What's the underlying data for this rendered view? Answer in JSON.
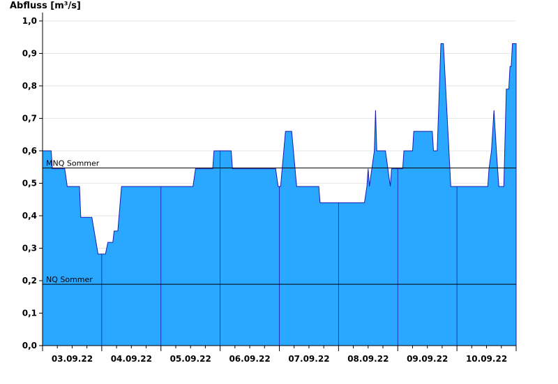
{
  "chart_data": {
    "type": "area",
    "ylabel": "Abfluss [m³/s]",
    "ylim": [
      0,
      1.0
    ],
    "yticks": [
      0.0,
      0.1,
      0.2,
      0.3,
      0.4,
      0.5,
      0.6,
      0.7,
      0.8,
      0.9,
      1.0
    ],
    "ytick_labels": [
      "0,0",
      "0,1",
      "0,2",
      "0,3",
      "0,4",
      "0,5",
      "0,6",
      "0,7",
      "0,8",
      "0,9",
      "1,0"
    ],
    "xlim": [
      "2022-09-02 12:00",
      "2022-09-10 12:00"
    ],
    "x_day_labels": [
      {
        "date": "2022-09-03",
        "label": "03.09.22"
      },
      {
        "date": "2022-09-04",
        "label": "04.09.22"
      },
      {
        "date": "2022-09-05",
        "label": "05.09.22"
      },
      {
        "date": "2022-09-06",
        "label": "06.09.22"
      },
      {
        "date": "2022-09-07",
        "label": "07.09.22"
      },
      {
        "date": "2022-09-08",
        "label": "08.09.22"
      },
      {
        "date": "2022-09-09",
        "label": "09.09.22"
      },
      {
        "date": "2022-09-10",
        "label": "10.09.22"
      }
    ],
    "vertical_gridlines": [
      "2022-09-03 12:00",
      "2022-09-04 12:00",
      "2022-09-05 12:00",
      "2022-09-06 12:00",
      "2022-09-07 12:00",
      "2022-09-08 12:00",
      "2022-09-09 12:00"
    ],
    "reference_lines": [
      {
        "name": "MNQ Sommer",
        "value": 0.547
      },
      {
        "name": "NQ Sommer",
        "value": 0.189
      }
    ],
    "colors": {
      "fill": "#2aa7ff",
      "line": "#1a1ab4",
      "reference": "#000000"
    },
    "grid": "horizontal",
    "series": [
      {
        "name": "",
        "points": [
          [
            "2022-09-02 12:00",
            0.6
          ],
          [
            "2022-09-02 15:30",
            0.6
          ],
          [
            "2022-09-02 16:00",
            0.545
          ],
          [
            "2022-09-02 21:00",
            0.545
          ],
          [
            "2022-09-02 22:00",
            0.49
          ],
          [
            "2022-09-03 03:00",
            0.49
          ],
          [
            "2022-09-03 03:30",
            0.395
          ],
          [
            "2022-09-03 08:00",
            0.395
          ],
          [
            "2022-09-03 10:30",
            0.282
          ],
          [
            "2022-09-03 13:30",
            0.282
          ],
          [
            "2022-09-03 14:30",
            0.318
          ],
          [
            "2022-09-03 16:30",
            0.318
          ],
          [
            "2022-09-03 17:00",
            0.353
          ],
          [
            "2022-09-03 18:30",
            0.353
          ],
          [
            "2022-09-03 20:00",
            0.49
          ],
          [
            "2022-09-05 01:00",
            0.49
          ],
          [
            "2022-09-05 02:00",
            0.545
          ],
          [
            "2022-09-05 09:00",
            0.545
          ],
          [
            "2022-09-05 09:30",
            0.6
          ],
          [
            "2022-09-05 16:30",
            0.6
          ],
          [
            "2022-09-05 17:00",
            0.545
          ],
          [
            "2022-09-06 10:30",
            0.545
          ],
          [
            "2022-09-06 11:30",
            0.49
          ],
          [
            "2022-09-06 12:30",
            0.49
          ],
          [
            "2022-09-06 14:30",
            0.66
          ],
          [
            "2022-09-06 17:00",
            0.66
          ],
          [
            "2022-09-06 19:00",
            0.49
          ],
          [
            "2022-09-07 04:00",
            0.49
          ],
          [
            "2022-09-07 04:30",
            0.44
          ],
          [
            "2022-09-07 22:30",
            0.44
          ],
          [
            "2022-09-07 23:30",
            0.49
          ],
          [
            "2022-09-08 00:00",
            0.545
          ],
          [
            "2022-09-08 00:30",
            0.49
          ],
          [
            "2022-09-08 01:30",
            0.545
          ],
          [
            "2022-09-08 02:30",
            0.6
          ],
          [
            "2022-09-08 03:00",
            0.725
          ],
          [
            "2022-09-08 03:30",
            0.6
          ],
          [
            "2022-09-08 07:00",
            0.6
          ],
          [
            "2022-09-08 09:00",
            0.49
          ],
          [
            "2022-09-08 09:30",
            0.545
          ],
          [
            "2022-09-08 14:00",
            0.545
          ],
          [
            "2022-09-08 14:30",
            0.6
          ],
          [
            "2022-09-08 18:00",
            0.6
          ],
          [
            "2022-09-08 18:30",
            0.66
          ],
          [
            "2022-09-09 02:00",
            0.66
          ],
          [
            "2022-09-09 02:30",
            0.6
          ],
          [
            "2022-09-09 04:00",
            0.6
          ],
          [
            "2022-09-09 05:30",
            0.93
          ],
          [
            "2022-09-09 06:30",
            0.93
          ],
          [
            "2022-09-09 09:30",
            0.49
          ],
          [
            "2022-09-10 00:30",
            0.49
          ],
          [
            "2022-09-10 01:00",
            0.545
          ],
          [
            "2022-09-10 02:00",
            0.6
          ],
          [
            "2022-09-10 03:00",
            0.725
          ],
          [
            "2022-09-10 04:00",
            0.6
          ],
          [
            "2022-09-10 05:00",
            0.49
          ],
          [
            "2022-09-10 07:00",
            0.49
          ],
          [
            "2022-09-10 08:00",
            0.79
          ],
          [
            "2022-09-10 09:00",
            0.79
          ],
          [
            "2022-09-10 09:30",
            0.86
          ],
          [
            "2022-09-10 10:00",
            0.86
          ],
          [
            "2022-09-10 10:30",
            0.93
          ],
          [
            "2022-09-10 12:00",
            0.93
          ]
        ]
      }
    ]
  }
}
